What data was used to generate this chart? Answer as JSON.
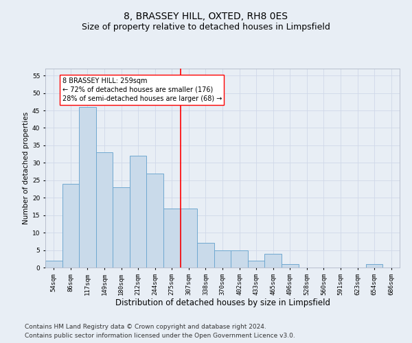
{
  "title": "8, BRASSEY HILL, OXTED, RH8 0ES",
  "subtitle": "Size of property relative to detached houses in Limpsfield",
  "xlabel": "Distribution of detached houses by size in Limpsfield",
  "ylabel": "Number of detached properties",
  "categories": [
    "54sqm",
    "86sqm",
    "117sqm",
    "149sqm",
    "180sqm",
    "212sqm",
    "244sqm",
    "275sqm",
    "307sqm",
    "338sqm",
    "370sqm",
    "402sqm",
    "433sqm",
    "465sqm",
    "496sqm",
    "528sqm",
    "560sqm",
    "591sqm",
    "623sqm",
    "654sqm",
    "686sqm"
  ],
  "values": [
    2,
    24,
    46,
    33,
    23,
    32,
    27,
    17,
    17,
    7,
    5,
    5,
    2,
    4,
    1,
    0,
    0,
    0,
    0,
    1,
    0
  ],
  "bar_color": "#c9daea",
  "bar_edge_color": "#6fa8d0",
  "grid_color": "#d0d8e8",
  "background_color": "#e8eef5",
  "vline_x": 7.5,
  "vline_color": "red",
  "annotation_text": "8 BRASSEY HILL: 259sqm\n← 72% of detached houses are smaller (176)\n28% of semi-detached houses are larger (68) →",
  "annotation_box_color": "white",
  "annotation_box_edge": "red",
  "ylim": [
    0,
    57
  ],
  "yticks": [
    0,
    5,
    10,
    15,
    20,
    25,
    30,
    35,
    40,
    45,
    50,
    55
  ],
  "footer1": "Contains HM Land Registry data © Crown copyright and database right 2024.",
  "footer2": "Contains public sector information licensed under the Open Government Licence v3.0.",
  "title_fontsize": 10,
  "subtitle_fontsize": 9,
  "xlabel_fontsize": 8.5,
  "ylabel_fontsize": 7.5,
  "tick_fontsize": 6.5,
  "footer_fontsize": 6.5,
  "annotation_fontsize": 7
}
